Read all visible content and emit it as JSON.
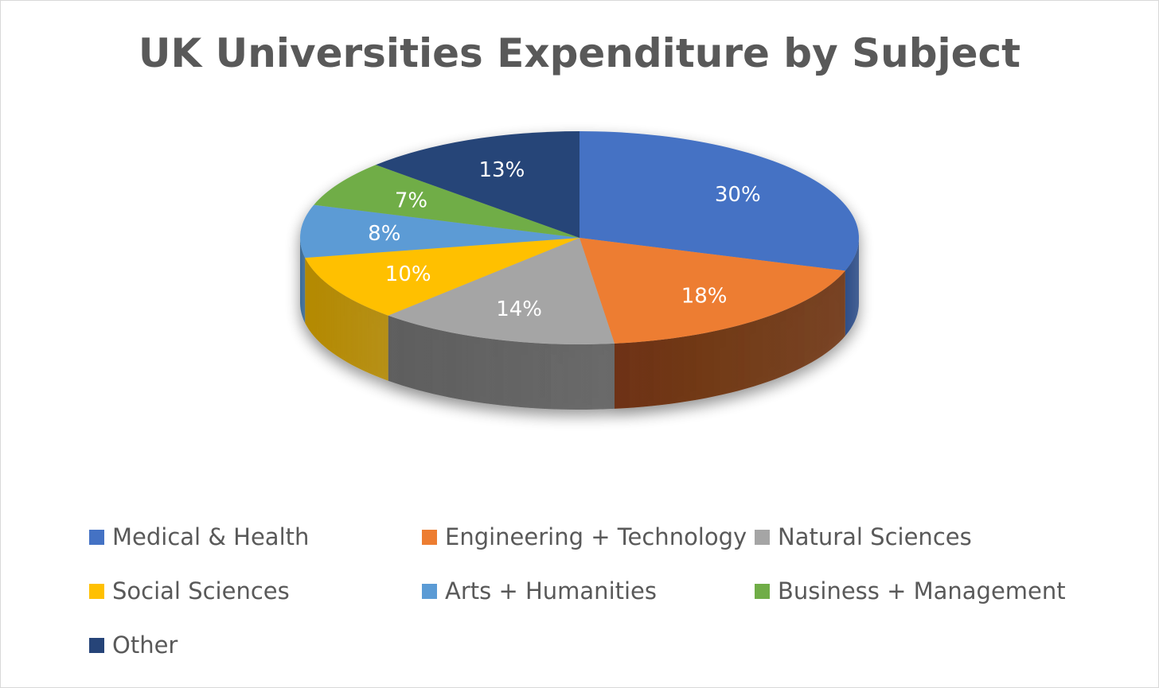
{
  "chart_data": {
    "type": "pie",
    "title": "UK Universities Expenditure by Subject",
    "start_angle_deg": 0,
    "direction": "clockwise",
    "legend_position": "bottom",
    "slices": [
      {
        "label": "Medical & Health",
        "value": 30,
        "value_label": "30%",
        "color": "#4472C4",
        "side_color": "#2F4F89"
      },
      {
        "label": "Engineering + Technology",
        "value": 18,
        "value_label": "18%",
        "color": "#ED7D31",
        "side_color": "#6E3312"
      },
      {
        "label": "Natural Sciences",
        "value": 14,
        "value_label": "14%",
        "color": "#A5A5A5",
        "side_color": "#5E5E5E"
      },
      {
        "label": "Social Sciences",
        "value": 10,
        "value_label": "10%",
        "color": "#FFC000",
        "side_color": "#B48900"
      },
      {
        "label": "Arts + Humanities",
        "value": 8,
        "value_label": "8%",
        "color": "#5B9BD5",
        "side_color": "#3A6A95"
      },
      {
        "label": "Business + Management",
        "value": 7,
        "value_label": "7%",
        "color": "#70AD47",
        "side_color": "#4B7A2E"
      },
      {
        "label": "Other",
        "value": 13,
        "value_label": "13%",
        "color": "#264478",
        "side_color": "#172B4D"
      }
    ]
  }
}
